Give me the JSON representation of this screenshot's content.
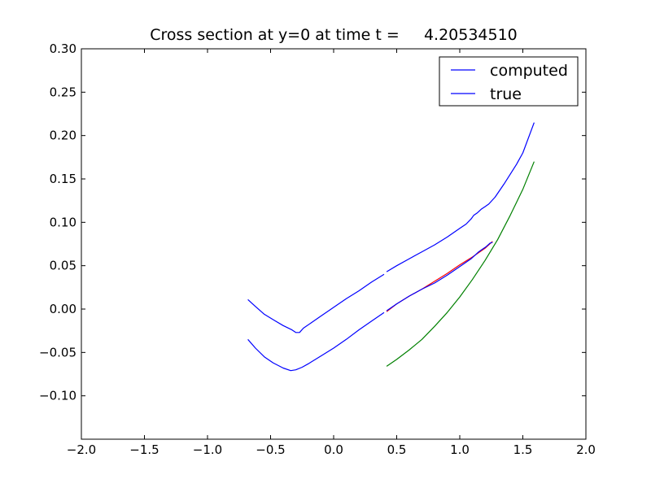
{
  "chart_data": {
    "type": "line",
    "title": "Cross section at y=0 at time t =     4.20534510",
    "xlabel": "",
    "ylabel": "",
    "xlim": [
      -2.0,
      2.0
    ],
    "ylim": [
      -0.15,
      0.3
    ],
    "grid": false,
    "legend_placement": "top-right",
    "x_ticks": [
      -2.0,
      -1.5,
      -1.0,
      -0.5,
      0.0,
      0.5,
      1.0,
      1.5,
      2.0
    ],
    "x_tick_labels": [
      "−2.0",
      "−1.5",
      "−1.0",
      "−0.5",
      "0.0",
      "0.5",
      "1.0",
      "1.5",
      "2.0"
    ],
    "y_ticks": [
      0.3,
      0.25,
      0.2,
      0.15,
      0.1,
      0.05,
      0.0,
      -0.05,
      -0.1
    ],
    "y_tick_labels": [
      "0.30",
      "0.25",
      "0.20",
      "0.15",
      "0.10",
      "0.05",
      "0.00",
      "−0.05",
      "−0.10"
    ],
    "legend": [
      {
        "label": "computed",
        "color": "#0000ff"
      },
      {
        "label": "true",
        "color": "#0000ff"
      }
    ],
    "series": [
      {
        "color": "#0000ff",
        "points": [
          [
            -0.68,
            0.011
          ],
          [
            -0.62,
            0.003
          ],
          [
            -0.55,
            -0.006
          ],
          [
            -0.47,
            -0.013
          ],
          [
            -0.4,
            -0.019
          ],
          [
            -0.33,
            -0.024
          ],
          [
            -0.3,
            -0.027
          ],
          [
            -0.27,
            -0.027
          ],
          [
            -0.24,
            -0.022
          ],
          [
            -0.17,
            -0.015
          ],
          [
            -0.1,
            -0.008
          ],
          [
            0.0,
            0.002
          ],
          [
            0.1,
            0.012
          ],
          [
            0.2,
            0.021
          ],
          [
            0.3,
            0.031
          ],
          [
            0.4,
            0.04
          ]
        ]
      },
      {
        "color": "#0000ff",
        "points": [
          [
            0.42,
            0.043
          ],
          [
            0.5,
            0.05
          ],
          [
            0.6,
            0.058
          ],
          [
            0.7,
            0.066
          ],
          [
            0.8,
            0.074
          ],
          [
            0.9,
            0.083
          ],
          [
            1.0,
            0.093
          ],
          [
            1.05,
            0.098
          ],
          [
            1.09,
            0.104
          ],
          [
            1.11,
            0.108
          ],
          [
            1.14,
            0.111
          ],
          [
            1.17,
            0.115
          ],
          [
            1.2,
            0.118
          ],
          [
            1.23,
            0.121
          ],
          [
            1.28,
            0.129
          ],
          [
            1.35,
            0.144
          ],
          [
            1.45,
            0.167
          ],
          [
            1.5,
            0.18
          ],
          [
            1.59,
            0.215
          ]
        ]
      },
      {
        "color": "#0000ff",
        "points": [
          [
            -0.68,
            -0.035
          ],
          [
            -0.62,
            -0.045
          ],
          [
            -0.55,
            -0.055
          ],
          [
            -0.48,
            -0.062
          ],
          [
            -0.4,
            -0.068
          ],
          [
            -0.34,
            -0.071
          ],
          [
            -0.3,
            -0.07
          ],
          [
            -0.25,
            -0.067
          ],
          [
            -0.2,
            -0.063
          ],
          [
            -0.1,
            -0.054
          ],
          [
            0.0,
            -0.045
          ],
          [
            0.1,
            -0.035
          ],
          [
            0.2,
            -0.024
          ],
          [
            0.3,
            -0.014
          ],
          [
            0.4,
            -0.004
          ]
        ]
      },
      {
        "color": "#ff0000",
        "points": [
          [
            0.42,
            -0.003
          ],
          [
            0.5,
            0.006
          ],
          [
            0.6,
            0.015
          ],
          [
            0.7,
            0.023
          ],
          [
            0.8,
            0.032
          ],
          [
            0.9,
            0.041
          ],
          [
            1.0,
            0.051
          ],
          [
            1.1,
            0.06
          ],
          [
            1.2,
            0.07
          ],
          [
            1.26,
            0.078
          ]
        ]
      },
      {
        "color": "#0000ff",
        "points": [
          [
            0.42,
            -0.002
          ],
          [
            0.5,
            0.006
          ],
          [
            0.6,
            0.015
          ],
          [
            0.7,
            0.023
          ],
          [
            0.8,
            0.03
          ],
          [
            0.9,
            0.039
          ],
          [
            1.0,
            0.049
          ],
          [
            1.05,
            0.054
          ],
          [
            1.09,
            0.058
          ],
          [
            1.12,
            0.062
          ],
          [
            1.15,
            0.066
          ],
          [
            1.18,
            0.069
          ],
          [
            1.21,
            0.072
          ],
          [
            1.24,
            0.076
          ],
          [
            1.26,
            0.077
          ]
        ]
      },
      {
        "color": "#008000",
        "points": [
          [
            0.42,
            -0.066
          ],
          [
            0.5,
            -0.058
          ],
          [
            0.6,
            -0.047
          ],
          [
            0.7,
            -0.035
          ],
          [
            0.8,
            -0.02
          ],
          [
            0.9,
            -0.004
          ],
          [
            1.0,
            0.014
          ],
          [
            1.1,
            0.034
          ],
          [
            1.2,
            0.056
          ],
          [
            1.3,
            0.08
          ],
          [
            1.4,
            0.108
          ],
          [
            1.5,
            0.138
          ],
          [
            1.59,
            0.17
          ]
        ]
      }
    ]
  }
}
